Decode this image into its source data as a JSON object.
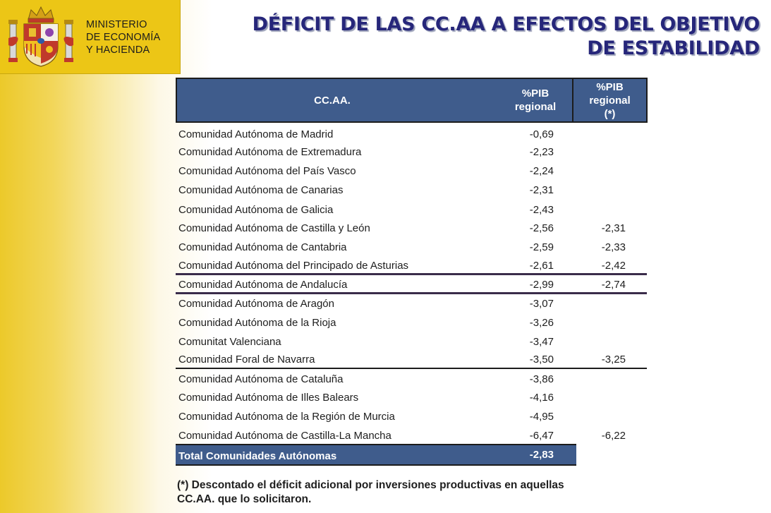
{
  "header": {
    "ministry_lines": [
      "MINISTERIO",
      "DE ECONOMÍA",
      "Y HACIENDA"
    ],
    "title_lines": [
      "DÉFICIT DE LAS CC.AA A EFECTOS DEL OBJETIVO",
      "DE ESTABILIDAD"
    ]
  },
  "table": {
    "headers": {
      "name": "CC.AA.",
      "pib_lines": [
        "%PIB",
        "regional"
      ],
      "pib_adj_lines": [
        "%PIB",
        "regional",
        "(*)"
      ]
    },
    "rows": [
      {
        "name": "Comunidad Autónoma de Madrid",
        "pib": "-0,69",
        "pib_adj": ""
      },
      {
        "name": "Comunidad Autónoma de Extremadura",
        "pib": "-2,23",
        "pib_adj": ""
      },
      {
        "name": "Comunidad Autónoma del País Vasco",
        "pib": "-2,24",
        "pib_adj": ""
      },
      {
        "name": "Comunidad Autónoma de Canarias",
        "pib": "-2,31",
        "pib_adj": ""
      },
      {
        "name": "Comunidad Autónoma de Galicia",
        "pib": "-2,43",
        "pib_adj": ""
      },
      {
        "name": "Comunidad Autónoma de Castilla y León",
        "pib": "-2,56",
        "pib_adj": "-2,31"
      },
      {
        "name": "Comunidad Autónoma de Cantabria",
        "pib": "-2,59",
        "pib_adj": "-2,33"
      },
      {
        "name": "Comunidad Autónoma del Principado de Asturias",
        "pib": "-2,61",
        "pib_adj": "-2,42"
      },
      {
        "name": "Comunidad Autónoma de Andalucía",
        "pib": "-2,99",
        "pib_adj": "-2,74"
      },
      {
        "name": "Comunidad Autónoma de Aragón",
        "pib": "-3,07",
        "pib_adj": ""
      },
      {
        "name": "Comunidad Autónoma de la Rioja",
        "pib": "-3,26",
        "pib_adj": ""
      },
      {
        "name": "Comunitat Valenciana",
        "pib": "-3,47",
        "pib_adj": ""
      },
      {
        "name": "Comunidad Foral de Navarra",
        "pib": "-3,50",
        "pib_adj": "-3,25"
      },
      {
        "name": "Comunidad Autónoma de Cataluña",
        "pib": "-3,86",
        "pib_adj": ""
      },
      {
        "name": "Comunidad Autónoma de Illes Balears",
        "pib": "-4,16",
        "pib_adj": ""
      },
      {
        "name": "Comunidad Autónoma de la Región de Murcia",
        "pib": "-4,95",
        "pib_adj": ""
      },
      {
        "name": "Comunidad Autónoma de Castilla-La Mancha",
        "pib": "-6,47",
        "pib_adj": "-6,22"
      }
    ],
    "total": {
      "name": "Total Comunidades Autónomas",
      "pib": "-2,83"
    }
  },
  "footnote_lines": [
    "(*) Descontado el déficit adicional por inversiones productivas en aquellas",
    "CC.AA. que lo solicitaron."
  ],
  "colors": {
    "header_blue": "#3f5c8c",
    "title_navy": "#26267a",
    "gold": "#ecc616"
  }
}
